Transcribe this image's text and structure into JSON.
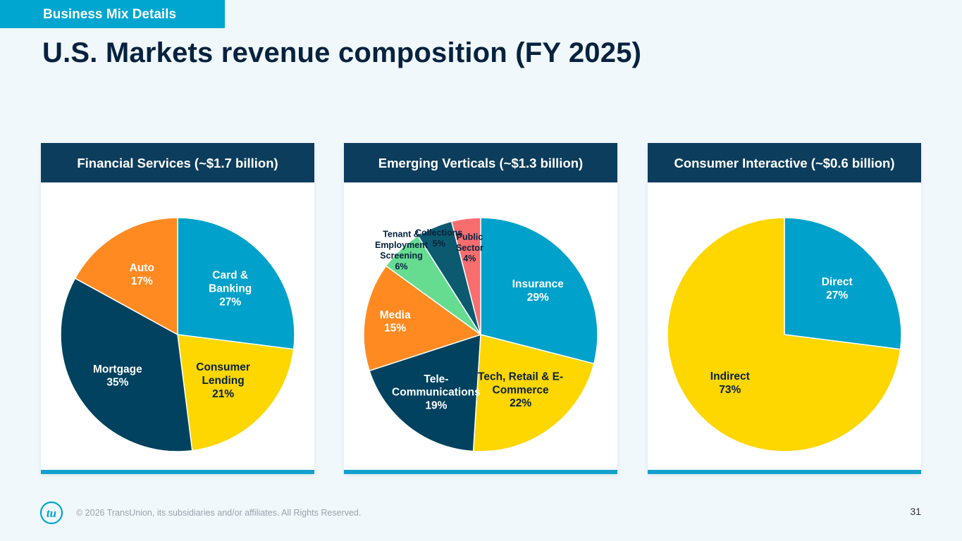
{
  "section_tab": "Business Mix Details",
  "title": "U.S. Markets revenue composition (FY 2025)",
  "colors": {
    "teal": "#00a1ca",
    "yellow": "#fed600",
    "navy": "#00425f",
    "orange": "#ff8a21",
    "green": "#66dc91",
    "dark_teal": "#0c5a6f",
    "salmon": "#f86d6e",
    "header_bg": "#0c3d5c",
    "accent_bar": "#11a2cf"
  },
  "footer": {
    "logo_text": "tu",
    "copyright": "© 2026 TransUnion, its subsidiaries and/or affiliates. All Rights Reserved.",
    "page_number": "31"
  },
  "chart_data": [
    {
      "type": "pie",
      "title": "Financial Services (~$1.7 billion)",
      "slices": [
        {
          "label_lines": [
            "Card &",
            "Banking"
          ],
          "pct_label": "27%",
          "value": 27,
          "color": "#00a1ca",
          "text_color": "#ffffff"
        },
        {
          "label_lines": [
            "Consumer",
            "Lending"
          ],
          "pct_label": "21%",
          "value": 21,
          "color": "#fed600",
          "text_color": "#06223e"
        },
        {
          "label_lines": [
            "Mortgage"
          ],
          "pct_label": "35%",
          "value": 35,
          "color": "#00425f",
          "text_color": "#ffffff"
        },
        {
          "label_lines": [
            "Auto"
          ],
          "pct_label": "17%",
          "value": 17,
          "color": "#ff8a21",
          "text_color": "#ffffff"
        }
      ]
    },
    {
      "type": "pie",
      "title": "Emerging Verticals (~$1.3 billion)",
      "slices": [
        {
          "label_lines": [
            "Insurance"
          ],
          "pct_label": "29%",
          "value": 29,
          "color": "#00a1ca",
          "text_color": "#ffffff"
        },
        {
          "label_lines": [
            "Tech, Retail & E-",
            "Commerce"
          ],
          "pct_label": "22%",
          "value": 22,
          "color": "#fed600",
          "text_color": "#06223e"
        },
        {
          "label_lines": [
            "Tele-",
            "Communications"
          ],
          "pct_label": "19%",
          "value": 19,
          "color": "#00425f",
          "text_color": "#ffffff"
        },
        {
          "label_lines": [
            "Media"
          ],
          "pct_label": "15%",
          "value": 15,
          "color": "#ff8a21",
          "text_color": "#ffffff"
        },
        {
          "label_lines": [
            "Tenant &",
            "Employment",
            "Screening"
          ],
          "pct_label": "6%",
          "value": 6,
          "color": "#66dc91",
          "text_color": "#06223e"
        },
        {
          "label_lines": [
            "Collections"
          ],
          "pct_label": "5%",
          "value": 5,
          "color": "#0c5a6f",
          "text_color": "#06223e"
        },
        {
          "label_lines": [
            "Public",
            "Sector"
          ],
          "pct_label": "4%",
          "value": 4,
          "color": "#f86d6e",
          "text_color": "#06223e"
        }
      ]
    },
    {
      "type": "pie",
      "title": "Consumer Interactive (~$0.6 billion)",
      "slices": [
        {
          "label_lines": [
            "Direct"
          ],
          "pct_label": "27%",
          "value": 27,
          "color": "#00a1ca",
          "text_color": "#ffffff"
        },
        {
          "label_lines": [
            "Indirect"
          ],
          "pct_label": "73%",
          "value": 73,
          "color": "#fed600",
          "text_color": "#06223e"
        }
      ]
    }
  ]
}
